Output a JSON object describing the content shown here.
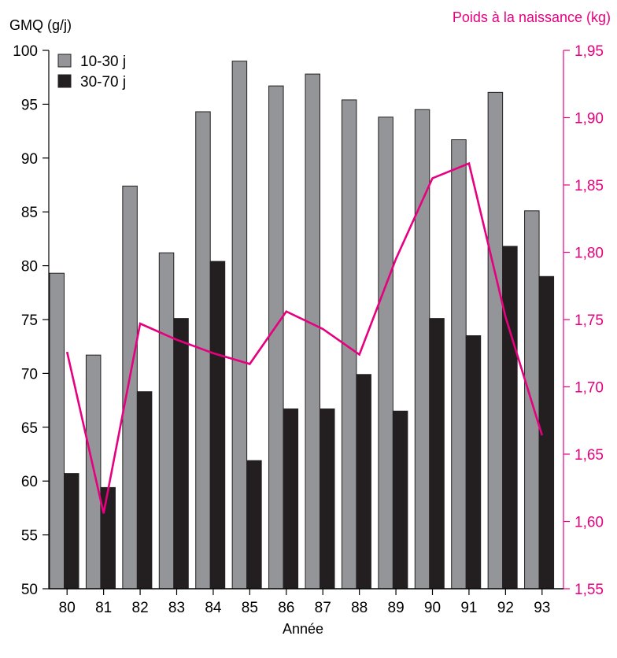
{
  "chart_data": {
    "type": "bar",
    "categories": [
      "80",
      "81",
      "82",
      "83",
      "84",
      "85",
      "86",
      "87",
      "88",
      "89",
      "90",
      "91",
      "92",
      "93"
    ],
    "xlabel": "Année",
    "ylabel_left": "GMQ (g/j)",
    "ylabel_right": "Poids à la naissance (kg)",
    "ylim_left": [
      50,
      100
    ],
    "yticks_left": [
      "50",
      "55",
      "60",
      "65",
      "70",
      "75",
      "80",
      "85",
      "90",
      "95",
      "100"
    ],
    "ylim_right": [
      1.55,
      1.95
    ],
    "yticks_right": [
      "1,55",
      "1,60",
      "1,65",
      "1,70",
      "1,75",
      "1,80",
      "1,85",
      "1,90",
      "1,95"
    ],
    "legend_position": "top-left",
    "series": [
      {
        "name": "10-30 j",
        "axis": "left",
        "kind": "bar",
        "color": "#939598",
        "values": [
          79.3,
          71.7,
          87.4,
          81.2,
          94.3,
          99.0,
          96.7,
          97.8,
          95.4,
          93.8,
          94.5,
          91.7,
          96.1,
          85.1
        ]
      },
      {
        "name": "30-70 j",
        "axis": "left",
        "kind": "bar",
        "color": "#231f20",
        "values": [
          60.7,
          59.4,
          68.3,
          75.1,
          80.4,
          61.9,
          66.7,
          66.7,
          69.9,
          66.5,
          75.1,
          73.5,
          81.8,
          79.0
        ]
      },
      {
        "name": "Poids à la naissance",
        "axis": "right",
        "kind": "line",
        "color": "#e6007e",
        "values": [
          1.726,
          1.606,
          1.747,
          1.735,
          1.725,
          1.717,
          1.756,
          1.743,
          1.724,
          1.795,
          1.855,
          1.866,
          1.752,
          1.664
        ]
      }
    ]
  }
}
